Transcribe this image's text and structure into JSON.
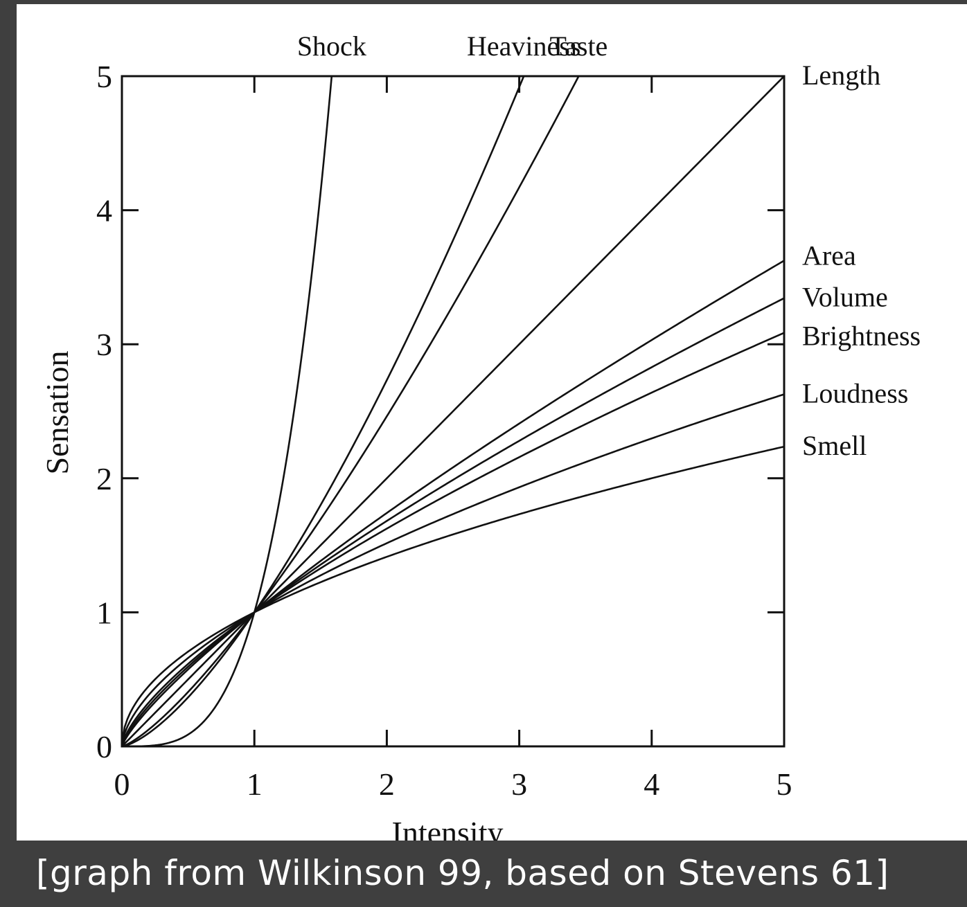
{
  "caption": "[graph from Wilkinson 99, based on Stevens 61]",
  "chart_data": {
    "type": "line",
    "title": "",
    "xlabel": "Intensity",
    "ylabel": "Sensation",
    "xlim": [
      0,
      5
    ],
    "ylim": [
      0,
      5
    ],
    "x_ticks": [
      "0",
      "1",
      "2",
      "3",
      "4",
      "5"
    ],
    "y_ticks": [
      "0",
      "1",
      "2",
      "3",
      "4",
      "5"
    ],
    "grid": false,
    "legend": "none",
    "model": "power function y = x^a (Stevens' law)",
    "series": [
      {
        "name": "Shock",
        "exponent": 3.5
      },
      {
        "name": "Heaviness",
        "exponent": 1.45
      },
      {
        "name": "Taste",
        "exponent": 1.3
      },
      {
        "name": "Length",
        "exponent": 1.0
      },
      {
        "name": "Area",
        "exponent": 0.8
      },
      {
        "name": "Volume",
        "exponent": 0.75
      },
      {
        "name": "Brightness",
        "exponent": 0.7
      },
      {
        "name": "Loudness",
        "exponent": 0.6
      },
      {
        "name": "Smell",
        "exponent": 0.5
      }
    ]
  }
}
